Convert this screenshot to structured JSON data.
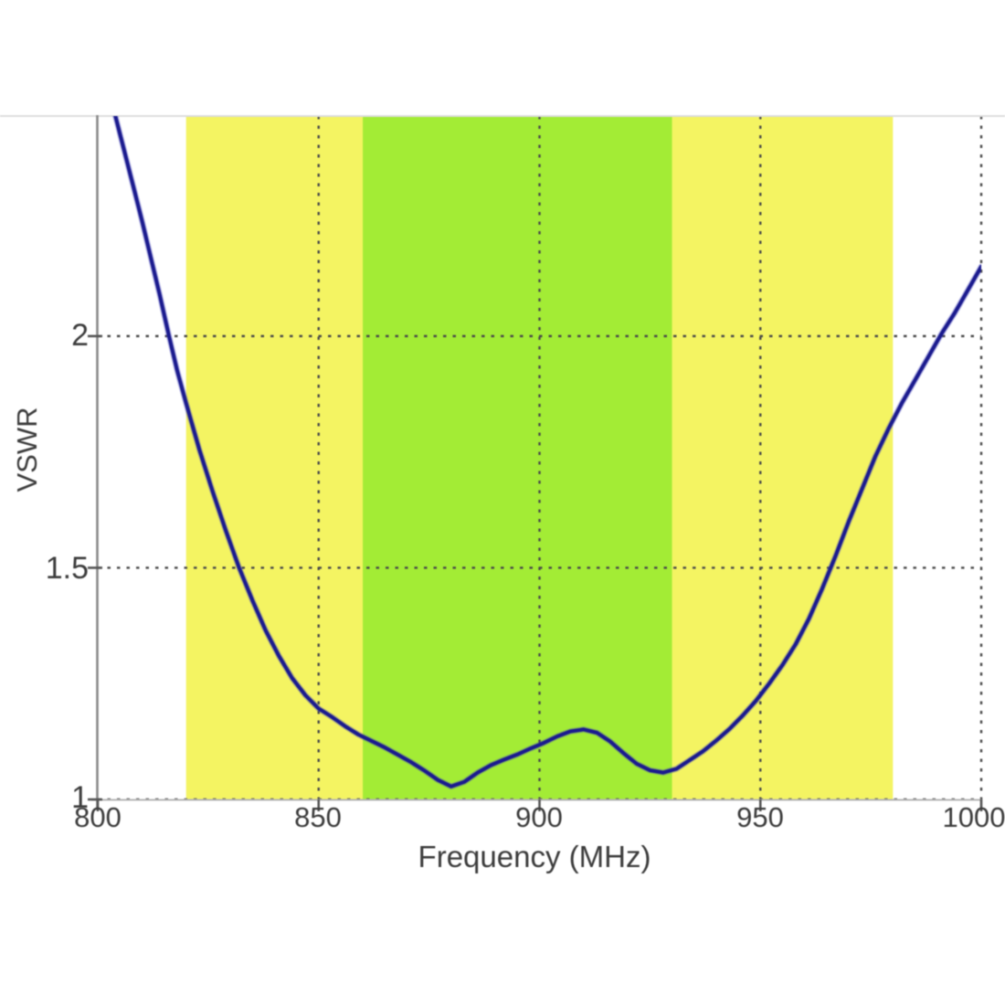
{
  "chart_data": {
    "type": "line",
    "title": "",
    "xlabel": "Frequency (MHz)",
    "ylabel": "VSWR",
    "xlim": [
      800,
      1000
    ],
    "ylim": [
      1,
      2.475
    ],
    "x_ticks": [
      800,
      850,
      900,
      950,
      1000
    ],
    "x_tick_labels": [
      "800",
      "850",
      "900",
      "950",
      "1000"
    ],
    "y_ticks": [
      1,
      1.5,
      2
    ],
    "y_tick_labels": [
      "1",
      "1.5",
      "2"
    ],
    "grid": "dotted",
    "legend_position": "none",
    "bands": [
      {
        "label": "outer-frequency-band",
        "x_from": 820,
        "x_to": 980,
        "color": "#f4f462"
      },
      {
        "label": "inner-frequency-band",
        "x_from": 860,
        "x_to": 930,
        "color": "#a3ec35"
      }
    ],
    "series": [
      {
        "name": "VSWR",
        "color": "#1b1b8e",
        "points": [
          [
            804,
            2.475
          ],
          [
            806,
            2.4
          ],
          [
            808,
            2.325
          ],
          [
            810,
            2.25
          ],
          [
            812,
            2.17
          ],
          [
            814,
            2.09
          ],
          [
            816,
            2.005
          ],
          [
            818,
            1.925
          ],
          [
            820,
            1.855
          ],
          [
            823,
            1.755
          ],
          [
            826,
            1.665
          ],
          [
            829,
            1.58
          ],
          [
            832,
            1.5
          ],
          [
            835,
            1.43
          ],
          [
            838,
            1.365
          ],
          [
            841,
            1.31
          ],
          [
            844,
            1.262
          ],
          [
            847,
            1.225
          ],
          [
            850,
            1.196
          ],
          [
            853,
            1.178
          ],
          [
            856,
            1.158
          ],
          [
            859,
            1.14
          ],
          [
            862,
            1.126
          ],
          [
            865,
            1.112
          ],
          [
            868,
            1.096
          ],
          [
            871,
            1.08
          ],
          [
            874,
            1.062
          ],
          [
            877,
            1.042
          ],
          [
            880,
            1.028
          ],
          [
            883,
            1.038
          ],
          [
            886,
            1.058
          ],
          [
            889,
            1.074
          ],
          [
            892,
            1.086
          ],
          [
            895,
            1.097
          ],
          [
            898,
            1.11
          ],
          [
            901,
            1.122
          ],
          [
            904,
            1.136
          ],
          [
            907,
            1.147
          ],
          [
            910,
            1.151
          ],
          [
            913,
            1.144
          ],
          [
            916,
            1.125
          ],
          [
            919,
            1.1
          ],
          [
            922,
            1.077
          ],
          [
            925,
            1.063
          ],
          [
            928,
            1.058
          ],
          [
            931,
            1.066
          ],
          [
            934,
            1.085
          ],
          [
            937,
            1.104
          ],
          [
            940,
            1.127
          ],
          [
            943,
            1.152
          ],
          [
            946,
            1.181
          ],
          [
            949,
            1.213
          ],
          [
            952,
            1.25
          ],
          [
            955,
            1.29
          ],
          [
            958,
            1.335
          ],
          [
            961,
            1.39
          ],
          [
            964,
            1.455
          ],
          [
            967,
            1.525
          ],
          [
            970,
            1.6
          ],
          [
            973,
            1.67
          ],
          [
            976,
            1.74
          ],
          [
            979,
            1.8
          ],
          [
            982,
            1.855
          ],
          [
            985,
            1.905
          ],
          [
            988,
            1.955
          ],
          [
            991,
            2.005
          ],
          [
            994,
            2.05
          ],
          [
            997,
            2.1
          ],
          [
            1000,
            2.15
          ]
        ]
      }
    ]
  },
  "colors": {
    "background": "#ffffff",
    "band_yellow": "#f4f462",
    "band_green": "#a3ec35",
    "curve_blue": "#1b1b8e",
    "curve_halo": "#4343b8",
    "grid": "#4a4a4a",
    "axis": "#8a8a8a",
    "bottom_axis": "#b5b5b5",
    "top_border": "#dcdcdc",
    "tick": "#555555",
    "text": "#3c3c3c"
  }
}
